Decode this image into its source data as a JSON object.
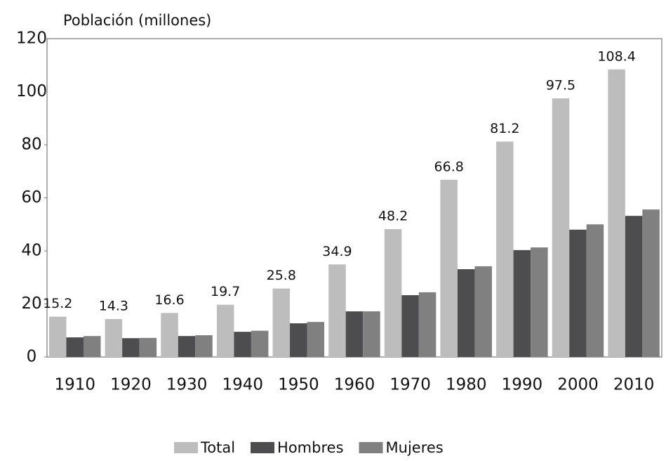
{
  "chart_data": {
    "type": "bar",
    "y_label": "Población (millones)",
    "categories": [
      "1910",
      "1920",
      "1930",
      "1940",
      "1950",
      "1960",
      "1970",
      "1980",
      "1990",
      "2000",
      "2010"
    ],
    "series": [
      {
        "name": "Total",
        "color": "#bdbdbd",
        "values": [
          15.2,
          14.3,
          16.6,
          19.7,
          25.8,
          34.9,
          48.2,
          66.8,
          81.2,
          97.5,
          108.4
        ]
      },
      {
        "name": "Hombres",
        "color": "#4d4d4f",
        "values": [
          7.4,
          7.1,
          7.9,
          9.5,
          12.7,
          17.2,
          23.3,
          33.1,
          40.3,
          48,
          53.2
        ]
      },
      {
        "name": "Mujeres",
        "color": "#808080",
        "values": [
          7.9,
          7.2,
          8.2,
          9.9,
          13.2,
          17.2,
          24.4,
          34.2,
          41.3,
          50,
          55.6
        ]
      }
    ],
    "labeled_series": 0,
    "ylim": [
      0,
      120
    ],
    "yticks": [
      0,
      20,
      40,
      60,
      80,
      100,
      120
    ],
    "grid": false,
    "legend": "bottom"
  }
}
